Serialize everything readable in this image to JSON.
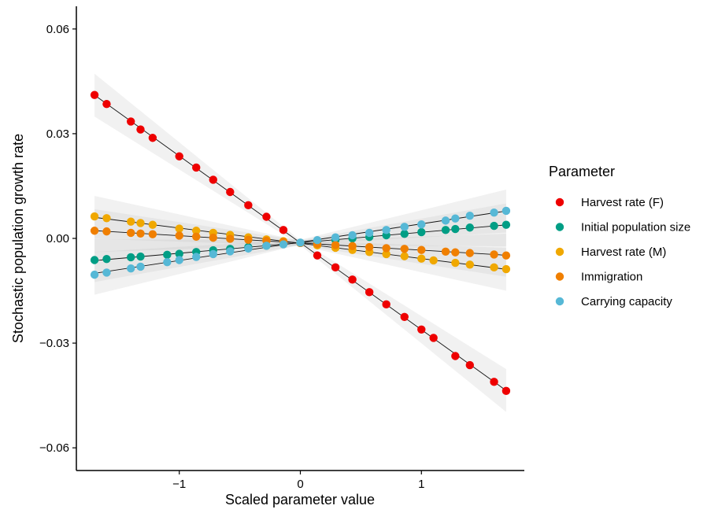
{
  "chart_data": {
    "type": "scatter",
    "xlabel": "Scaled parameter value",
    "ylabel": "Stochastic population growth rate",
    "xlim": [
      -1.85,
      1.85
    ],
    "ylim": [
      -0.0665,
      0.0665
    ],
    "x_ticks": [
      -1,
      0,
      1
    ],
    "x_tick_labels": [
      "−1",
      "0",
      "1"
    ],
    "y_ticks": [
      -0.06,
      -0.03,
      0,
      0.03,
      0.06
    ],
    "y_tick_labels": [
      "−0.06",
      "−0.03",
      "0.00",
      "0.03",
      "0.06"
    ],
    "grid": false,
    "legend": {
      "title": "Parameter",
      "position": "right"
    },
    "series": [
      {
        "name": "Harvest rate (F)",
        "color": "#EE0000",
        "x": [
          -1.7,
          -1.6,
          -1.4,
          -1.32,
          -1.22,
          -1.0,
          -0.86,
          -0.72,
          -0.58,
          -0.43,
          -0.28,
          -0.14,
          0.0,
          0.14,
          0.29,
          0.43,
          0.57,
          0.71,
          0.86,
          1.0,
          1.1,
          1.28,
          1.4,
          1.6,
          1.7
        ],
        "y": [
          0.0411,
          0.0385,
          0.0335,
          0.0312,
          0.0288,
          0.0235,
          0.0203,
          0.0168,
          0.0133,
          0.0095,
          0.0062,
          0.0024,
          -0.0013,
          -0.0049,
          -0.0083,
          -0.0118,
          -0.0154,
          -0.0189,
          -0.0225,
          -0.0261,
          -0.0285,
          -0.0337,
          -0.0363,
          -0.0411,
          -0.0437
        ]
      },
      {
        "name": "Initial population size",
        "color": "#009E85",
        "x": [
          -1.7,
          -1.6,
          -1.4,
          -1.32,
          -1.1,
          -1.0,
          -0.86,
          -0.72,
          -0.58,
          -0.43,
          -0.28,
          -0.14,
          0.0,
          0.14,
          0.29,
          0.43,
          0.57,
          0.71,
          0.86,
          1.0,
          1.2,
          1.28,
          1.4,
          1.6,
          1.7
        ],
        "y": [
          -0.0062,
          -0.0059,
          -0.0054,
          -0.0052,
          -0.0047,
          -0.0044,
          -0.0039,
          -0.0034,
          -0.003,
          -0.0025,
          -0.0021,
          -0.0016,
          -0.0013,
          -0.0009,
          -0.0005,
          0.0,
          0.0004,
          0.0009,
          0.0013,
          0.0018,
          0.0024,
          0.0027,
          0.0031,
          0.0036,
          0.0039
        ]
      },
      {
        "name": "Harvest rate (M)",
        "color": "#F0A800",
        "x": [
          -1.7,
          -1.6,
          -1.4,
          -1.32,
          -1.22,
          -1.0,
          -0.86,
          -0.72,
          -0.58,
          -0.43,
          -0.28,
          -0.14,
          0.0,
          0.14,
          0.29,
          0.43,
          0.57,
          0.71,
          0.86,
          1.0,
          1.1,
          1.28,
          1.4,
          1.6,
          1.7
        ],
        "y": [
          0.0063,
          0.0058,
          0.0048,
          0.0044,
          0.0039,
          0.0028,
          0.0022,
          0.0016,
          0.001,
          0.0003,
          -0.0003,
          -0.0008,
          -0.0013,
          -0.002,
          -0.0027,
          -0.0033,
          -0.0039,
          -0.0045,
          -0.0051,
          -0.0058,
          -0.0063,
          -0.007,
          -0.0075,
          -0.0083,
          -0.0088
        ]
      },
      {
        "name": "Immigration",
        "color": "#F07F00",
        "x": [
          -1.7,
          -1.6,
          -1.4,
          -1.32,
          -1.22,
          -1.0,
          -0.86,
          -0.72,
          -0.58,
          -0.43,
          -0.28,
          -0.14,
          0.0,
          0.14,
          0.29,
          0.43,
          0.57,
          0.71,
          0.86,
          1.0,
          1.2,
          1.28,
          1.4,
          1.6,
          1.7
        ],
        "y": [
          0.0022,
          0.002,
          0.0016,
          0.0014,
          0.0012,
          0.0008,
          0.0005,
          0.0002,
          -0.0001,
          -0.0004,
          -0.0007,
          -0.001,
          -0.0013,
          -0.0016,
          -0.0019,
          -0.0022,
          -0.0025,
          -0.0028,
          -0.003,
          -0.0033,
          -0.0038,
          -0.004,
          -0.0042,
          -0.0046,
          -0.0049
        ]
      },
      {
        "name": "Carrying capacity",
        "color": "#56B8D6",
        "x": [
          -1.7,
          -1.6,
          -1.4,
          -1.32,
          -1.1,
          -1.0,
          -0.86,
          -0.72,
          -0.58,
          -0.43,
          -0.28,
          -0.14,
          0.0,
          0.14,
          0.29,
          0.43,
          0.57,
          0.71,
          0.86,
          1.0,
          1.2,
          1.28,
          1.4,
          1.6,
          1.7
        ],
        "y": [
          -0.0104,
          -0.0098,
          -0.0086,
          -0.0081,
          -0.0068,
          -0.0062,
          -0.0053,
          -0.0045,
          -0.0037,
          -0.0029,
          -0.0021,
          -0.0017,
          -0.0012,
          -0.0005,
          0.0003,
          0.0009,
          0.0016,
          0.0024,
          0.0033,
          0.004,
          0.0051,
          0.0057,
          0.0065,
          0.0074,
          0.0079
        ]
      }
    ]
  }
}
